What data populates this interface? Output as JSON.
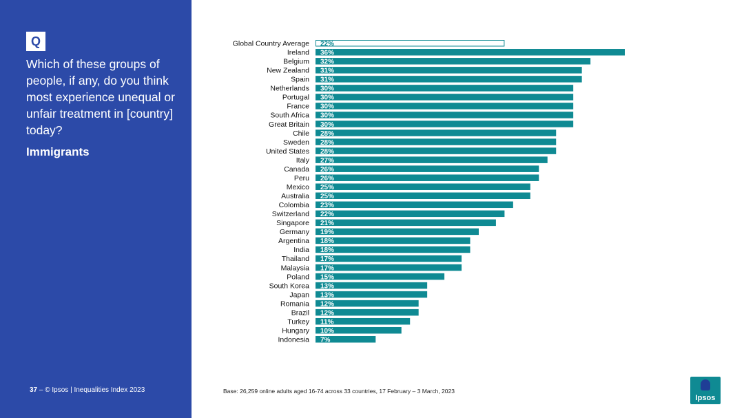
{
  "sidebar": {
    "badge": "Q",
    "question": "Which of these groups of people, if any, do you think most experience unequal or unfair treatment in [country] today?",
    "subject": "Immigrants"
  },
  "footer": {
    "page_number": "37",
    "separator": "–",
    "copyright": "© Ipsos | Inequalities Index 2023",
    "base_note": "Base: 26,259 online adults aged 16-74 across 33 countries, 17 February – 3 March, 2023"
  },
  "logo": {
    "text": "Ipsos"
  },
  "colors": {
    "sidebar": "#2c4aa8",
    "bar": "#0f8a93",
    "average_outline": "#0f8a93",
    "logo_bg": "#0f8a93"
  },
  "chart_data": {
    "type": "bar",
    "orientation": "horizontal",
    "categories": [
      "Global Country Average",
      "Ireland",
      "Belgium",
      "New Zealand",
      "Spain",
      "Netherlands",
      "Portugal",
      "France",
      "South Africa",
      "Great Britain",
      "Chile",
      "Sweden",
      "United States",
      "Italy",
      "Canada",
      "Peru",
      "Mexico",
      "Australia",
      "Colombia",
      "Switzerland",
      "Singapore",
      "Germany",
      "Argentina",
      "India",
      "Thailand",
      "Malaysia",
      "Poland",
      "South Korea",
      "Japan",
      "Romania",
      "Brazil",
      "Turkey",
      "Hungary",
      "Indonesia"
    ],
    "values": [
      22,
      36,
      32,
      31,
      31,
      30,
      30,
      30,
      30,
      30,
      28,
      28,
      28,
      27,
      26,
      26,
      25,
      25,
      23,
      22,
      21,
      19,
      18,
      18,
      17,
      17,
      15,
      13,
      13,
      12,
      12,
      11,
      10,
      7
    ],
    "labels": [
      "22%",
      "36%",
      "32%",
      "31%",
      "31%",
      "30%",
      "30%",
      "30%",
      "30%",
      "30%",
      "28%",
      "28%",
      "28%",
      "27%",
      "26%",
      "26%",
      "25%",
      "25%",
      "23%",
      "22%",
      "21%",
      "19%",
      "18%",
      "18%",
      "17%",
      "17%",
      "15%",
      "13%",
      "13%",
      "12%",
      "12%",
      "11%",
      "10%",
      "7%"
    ],
    "highlight_first": true,
    "xlim": [
      0,
      36
    ],
    "grid": false
  }
}
